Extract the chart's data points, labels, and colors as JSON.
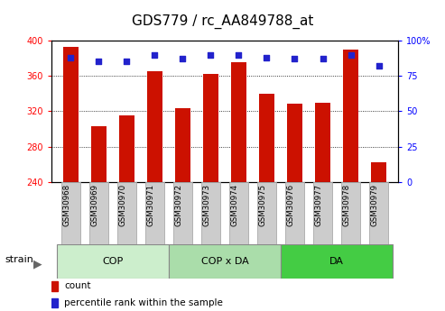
{
  "title": "GDS779 / rc_AA849788_at",
  "samples": [
    "GSM30968",
    "GSM30969",
    "GSM30970",
    "GSM30971",
    "GSM30972",
    "GSM30973",
    "GSM30974",
    "GSM30975",
    "GSM30976",
    "GSM30977",
    "GSM30978",
    "GSM30979"
  ],
  "counts": [
    393,
    303,
    315,
    365,
    323,
    362,
    375,
    340,
    328,
    330,
    390,
    262
  ],
  "percentiles": [
    88,
    85,
    85,
    90,
    87,
    90,
    90,
    88,
    87,
    87,
    90,
    82
  ],
  "ylim_left": [
    240,
    400
  ],
  "ylim_right": [
    0,
    100
  ],
  "yticks_left": [
    240,
    280,
    320,
    360,
    400
  ],
  "yticks_right": [
    0,
    25,
    50,
    75,
    100
  ],
  "bar_color": "#cc1100",
  "dot_color": "#2222cc",
  "groups": [
    {
      "label": "COP",
      "indices": [
        0,
        1,
        2,
        3
      ],
      "color": "#cceecc"
    },
    {
      "label": "COP x DA",
      "indices": [
        4,
        5,
        6,
        7
      ],
      "color": "#aaddaa"
    },
    {
      "label": "DA",
      "indices": [
        8,
        9,
        10,
        11
      ],
      "color": "#44cc44"
    }
  ],
  "group_label": "strain",
  "legend_count_label": "count",
  "legend_pct_label": "percentile rank within the sample",
  "tick_box_color": "#cccccc",
  "tick_box_edge": "#aaaaaa",
  "title_fontsize": 11,
  "tick_fontsize": 7,
  "label_fontsize": 8,
  "bar_width": 0.55
}
